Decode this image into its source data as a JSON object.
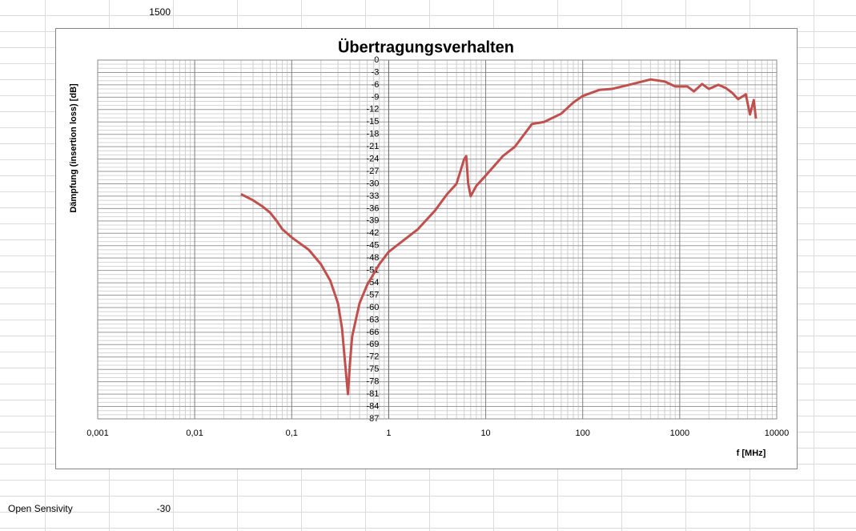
{
  "cells": {
    "top_value": "1500",
    "label": "Open Sensivity",
    "label_value": "-30"
  },
  "chart_data": {
    "type": "line",
    "title": "Übertragungsverhalten",
    "x_label": "f [MHz]",
    "y_label": "Dämpfung (insertion loss) [dB]",
    "xscale": "log",
    "grid": true,
    "xlim": [
      0.001,
      10000
    ],
    "xticks": [
      {
        "value": 0.001,
        "label": "0,001"
      },
      {
        "value": 0.01,
        "label": "0,01"
      },
      {
        "value": 0.1,
        "label": "0,1"
      },
      1,
      10,
      100,
      1000,
      10000
    ],
    "ylim": [
      -87,
      0
    ],
    "yticks": [
      0,
      -3,
      -6,
      -9,
      -12,
      -15,
      -18,
      -21,
      -24,
      -27,
      -30,
      -33,
      -36,
      -39,
      -42,
      -45,
      -48,
      -51,
      -54,
      -57,
      -60,
      -63,
      -66,
      -69,
      -72,
      -75,
      -78,
      -81,
      -84,
      -87
    ],
    "series": [
      {
        "color": "#c0504d",
        "x": [
          0.03,
          0.04,
          0.05,
          0.06,
          0.07,
          0.08,
          0.1,
          0.15,
          0.2,
          0.25,
          0.3,
          0.33,
          0.36,
          0.38,
          0.4,
          0.42,
          0.5,
          0.6,
          0.8,
          1,
          2,
          3,
          4,
          5,
          6,
          6.3,
          6.6,
          7,
          8,
          10,
          15,
          20,
          30,
          40,
          60,
          80,
          100,
          150,
          200,
          300,
          500,
          700,
          900,
          1200,
          1400,
          1700,
          2000,
          2500,
          3000,
          3500,
          4000,
          4800,
          5300,
          5800,
          6100
        ],
        "values": [
          -32.5,
          -34,
          -35.5,
          -37,
          -39,
          -41,
          -43,
          -46,
          -49.5,
          -53.5,
          -59,
          -65,
          -75,
          -81,
          -73,
          -67,
          -59,
          -54.5,
          -49.5,
          -46.5,
          -41,
          -36.5,
          -32.5,
          -30,
          -24,
          -23.3,
          -30,
          -33,
          -30.5,
          -28,
          -23.3,
          -21,
          -15.5,
          -15,
          -13,
          -10.3,
          -8.7,
          -7.2,
          -7,
          -6,
          -4.7,
          -5.2,
          -6.4,
          -6.4,
          -7.6,
          -5.8,
          -7,
          -6,
          -6.8,
          -8,
          -9.5,
          -8.3,
          -13.2,
          -9.7,
          -14.2
        ]
      }
    ]
  }
}
